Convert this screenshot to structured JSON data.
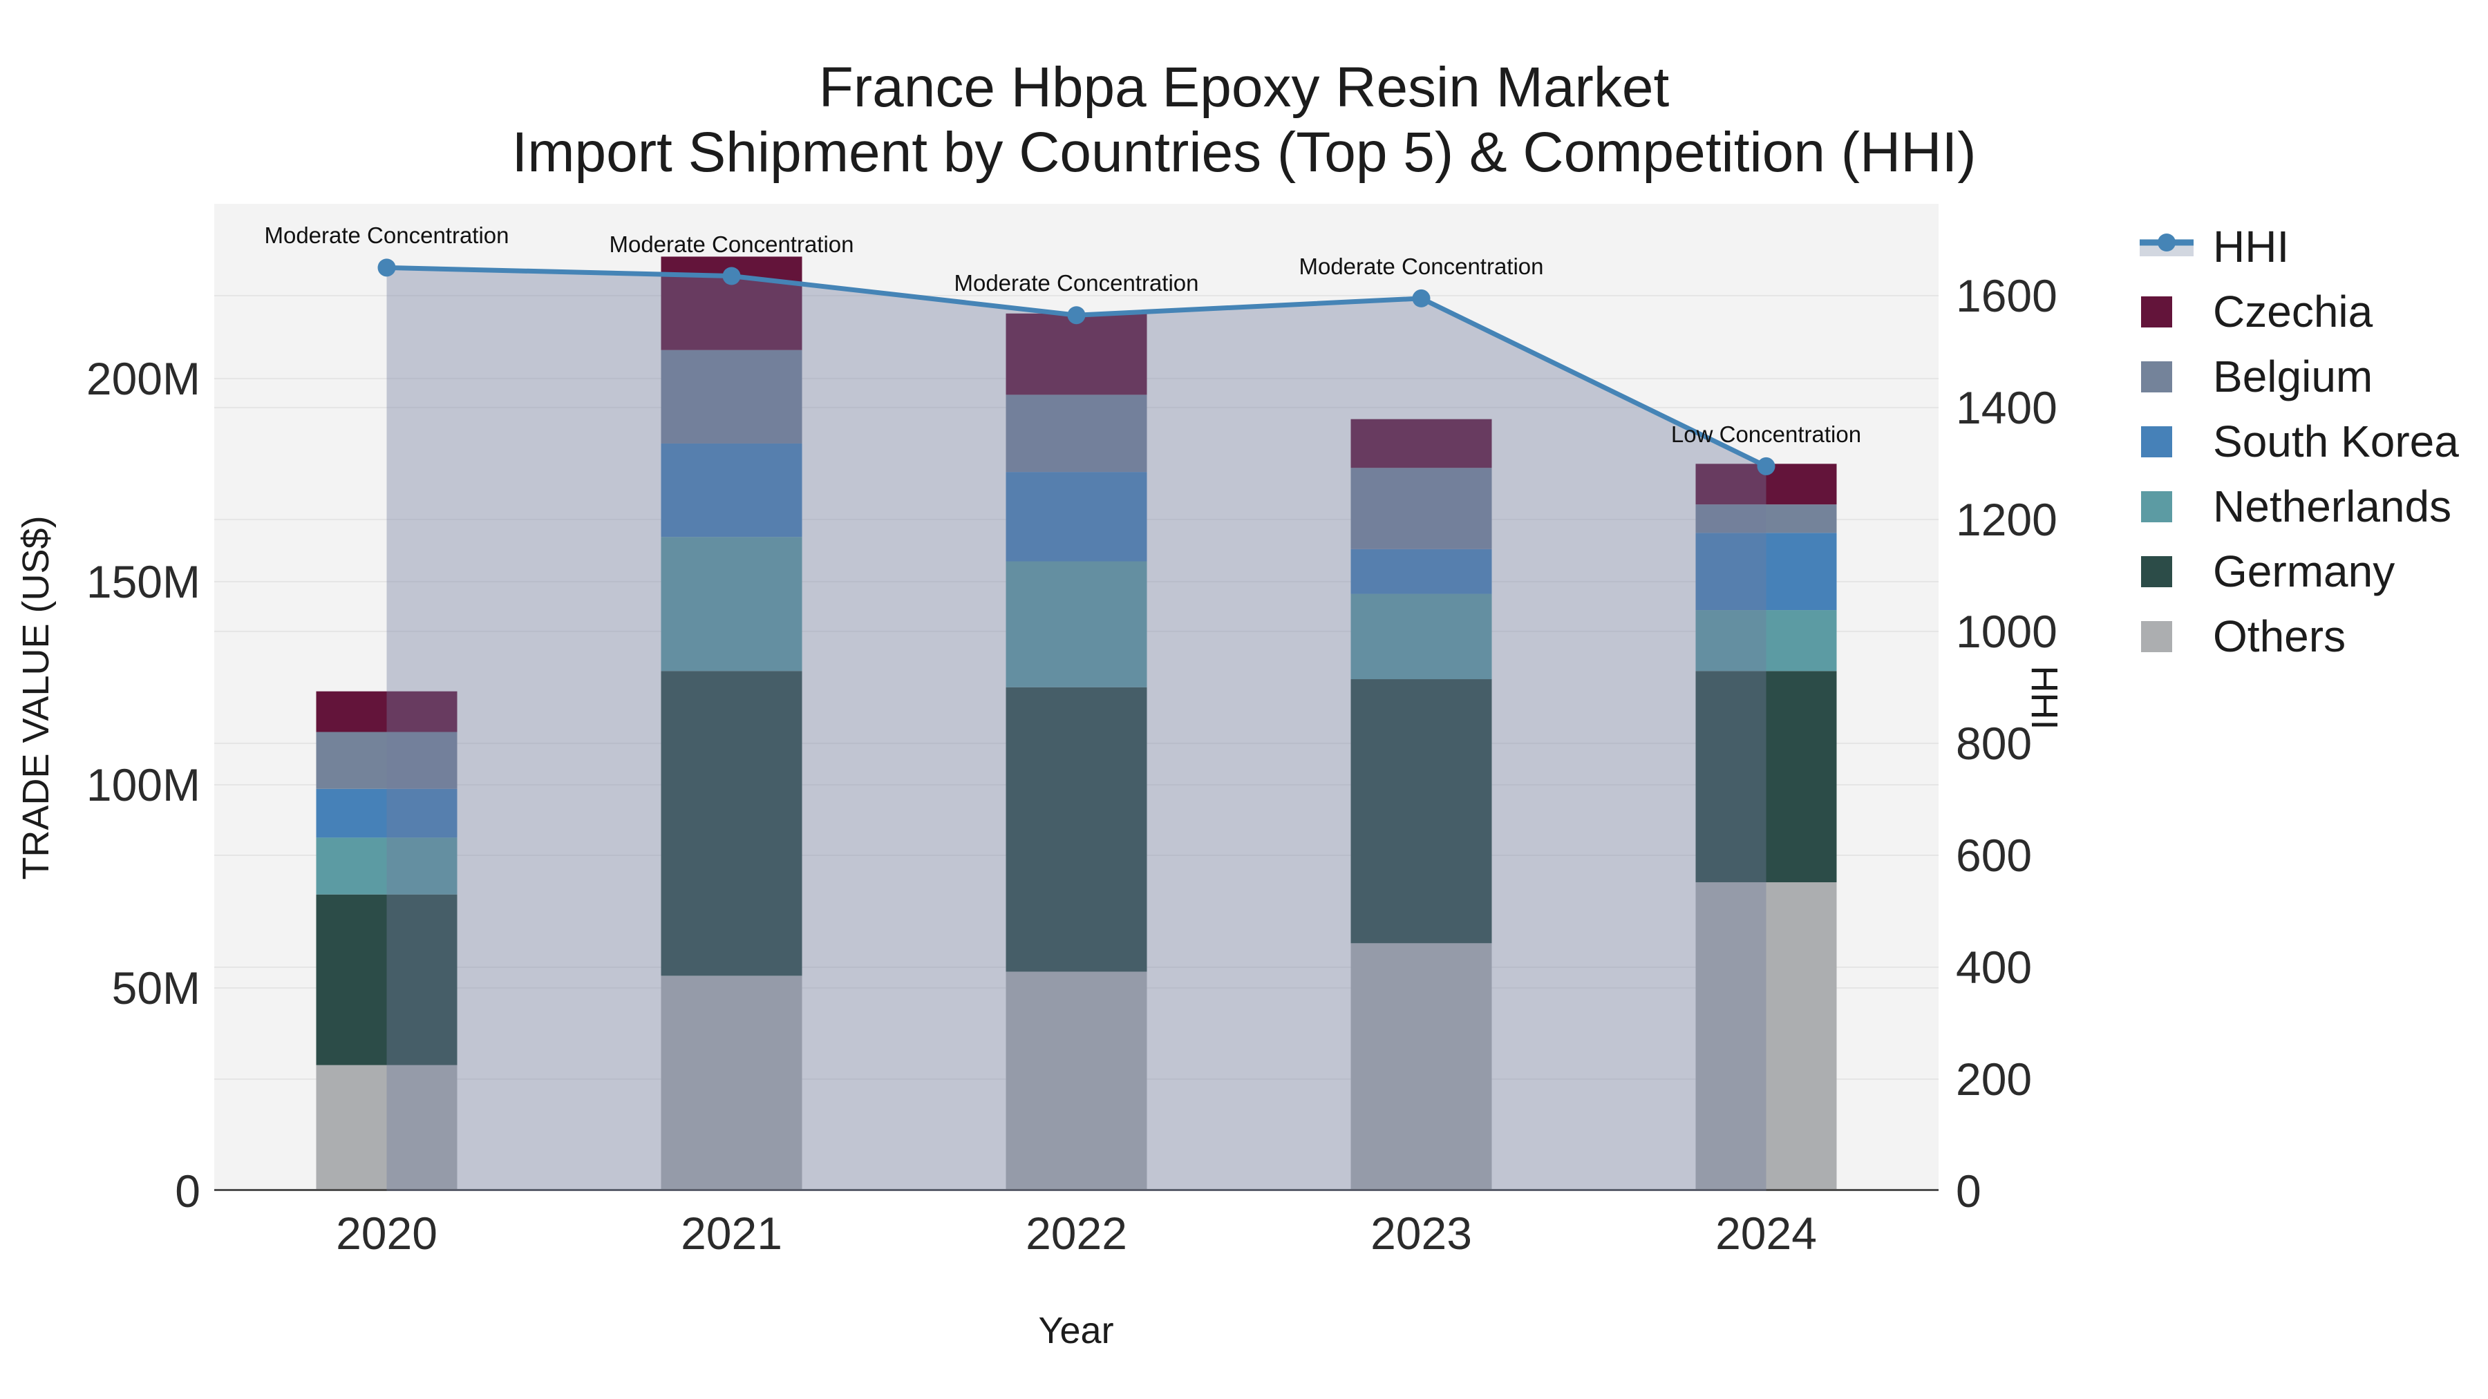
{
  "title": {
    "line1": "France Hbpa Epoxy Resin Market",
    "line2": "Import Shipment by Countries (Top 5) & Competition (HHI)"
  },
  "axes": {
    "x": {
      "title": "Year",
      "ticks": [
        "2020",
        "2021",
        "2022",
        "2023",
        "2024"
      ]
    },
    "y_left": {
      "title": "TRADE VALUE (US$)",
      "tick_labels": [
        "0",
        "50M",
        "100M",
        "150M",
        "200M"
      ],
      "tick_values": [
        0,
        50,
        100,
        150,
        200
      ],
      "max": 243
    },
    "y_right": {
      "title": "HHI",
      "tick_labels": [
        "0",
        "200",
        "400",
        "600",
        "800",
        "1000",
        "1200",
        "1400",
        "1600"
      ],
      "tick_values": [
        0,
        200,
        400,
        600,
        800,
        1000,
        1200,
        1400,
        1600
      ],
      "max": 1764
    }
  },
  "legend": {
    "items": [
      {
        "label": "HHI",
        "type": "line",
        "color": "#4584B6",
        "band_color": "#d2d7e0"
      },
      {
        "label": "Czechia",
        "type": "swatch",
        "color": "#63143A"
      },
      {
        "label": "Belgium",
        "type": "swatch",
        "color": "#74839A"
      },
      {
        "label": "South Korea",
        "type": "swatch",
        "color": "#4681B8"
      },
      {
        "label": "Netherlands",
        "type": "swatch",
        "color": "#5C9BA3"
      },
      {
        "label": "Germany",
        "type": "swatch",
        "color": "#2C4C48"
      },
      {
        "label": "Others",
        "type": "swatch",
        "color": "#ACAEB0"
      }
    ]
  },
  "chart_data": {
    "type": "bar",
    "subtype": "stacked-bars-with-line-overlay",
    "categories": [
      "2020",
      "2021",
      "2022",
      "2023",
      "2024"
    ],
    "values_unit": "millions US$ (read from 'M' axis ticks)",
    "series": [
      {
        "name": "Others",
        "color": "#ACAEB0",
        "values": [
          31,
          53,
          54,
          61,
          76
        ]
      },
      {
        "name": "Germany",
        "color": "#2C4C48",
        "values": [
          42,
          75,
          70,
          65,
          52
        ]
      },
      {
        "name": "Netherlands",
        "color": "#5C9BA3",
        "values": [
          14,
          33,
          31,
          21,
          15
        ]
      },
      {
        "name": "South Korea",
        "color": "#4681B8",
        "values": [
          12,
          23,
          22,
          11,
          19
        ]
      },
      {
        "name": "Belgium",
        "color": "#74839A",
        "values": [
          14,
          23,
          19,
          20,
          7
        ]
      },
      {
        "name": "Czechia",
        "color": "#63143A",
        "values": [
          10,
          23,
          20,
          12,
          10
        ]
      }
    ],
    "stack_totals": [
      123,
      230,
      216,
      190,
      179
    ],
    "line_series": {
      "name": "HHI",
      "axis": "right",
      "color": "#4584B6",
      "area_fill": "rgba(112,124,158,0.38)",
      "values": [
        1650,
        1635,
        1565,
        1595,
        1295
      ]
    },
    "annotations": [
      {
        "x": "2020",
        "text": "Moderate Concentration"
      },
      {
        "x": "2021",
        "text": "Moderate Concentration"
      },
      {
        "x": "2022",
        "text": "Moderate Concentration"
      },
      {
        "x": "2023",
        "text": "Moderate Concentration"
      },
      {
        "x": "2024",
        "text": "Low Concentration"
      }
    ],
    "title": "France Hbpa Epoxy Resin Market — Import Shipment by Countries (Top 5) & Competition (HHI)",
    "xlabel": "Year",
    "ylabel": "TRADE VALUE (US$)",
    "ylabel_right": "HHI",
    "ylim_left": [
      0,
      243
    ],
    "ylim_right": [
      0,
      1764
    ],
    "grid": true,
    "legend_position": "right"
  }
}
